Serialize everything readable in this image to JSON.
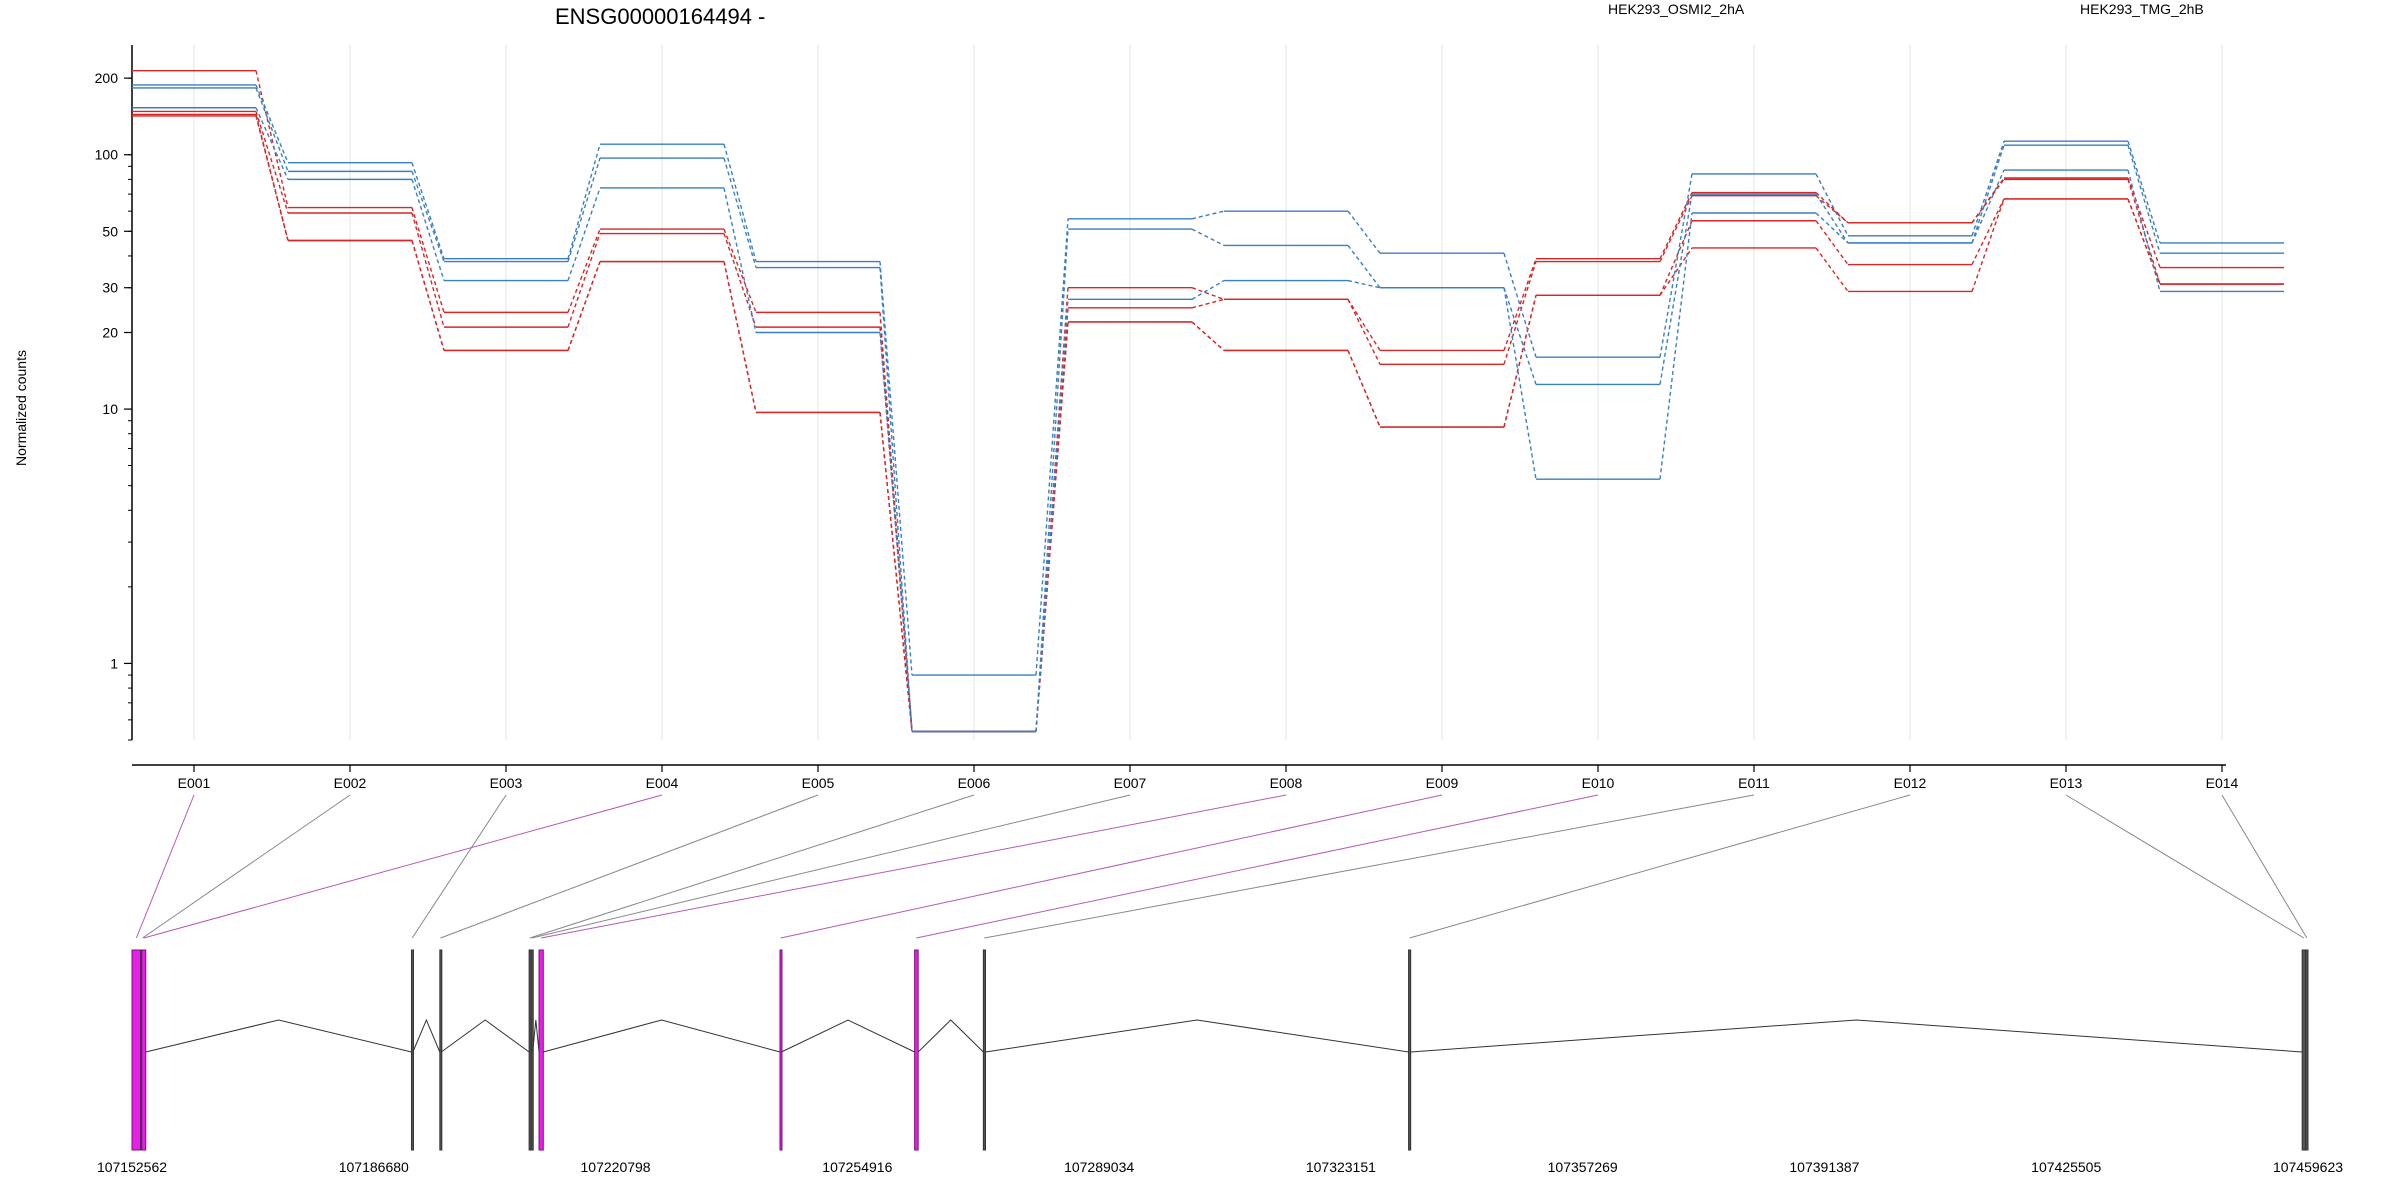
{
  "chart_data": {
    "type": "line",
    "title": "ENSG00000164494 -",
    "ylabel": "Normalized counts",
    "y_scale": "log",
    "ylim": [
      0.5,
      270
    ],
    "y_ticks": [
      1,
      10,
      20,
      30,
      50,
      100,
      200
    ],
    "grid": "vertical",
    "legend_placement": "top-right",
    "categories": [
      "E001",
      "E002",
      "E003",
      "E004",
      "E005",
      "E006",
      "E007",
      "E008",
      "E009",
      "E010",
      "E011",
      "E012",
      "E013",
      "E014"
    ],
    "series": [
      {
        "name": "HEK293_OSMI2_2hA",
        "color": "#d62728",
        "values": [
          214,
          62,
          24,
          51,
          24,
          0.54,
          30,
          27,
          17,
          39,
          71,
          54,
          81,
          36
        ]
      },
      {
        "name": "",
        "color": "#d62728",
        "values": [
          148,
          59,
          21,
          49,
          21,
          0.54,
          25,
          27,
          15,
          38,
          69,
          54,
          80,
          31
        ]
      },
      {
        "name": "",
        "color": "#d62728",
        "values": [
          142,
          46,
          17,
          38,
          9.7,
          0.54,
          22,
          17,
          8.5,
          28,
          55,
          37,
          67,
          31
        ]
      },
      {
        "name": "",
        "color": "#d62728",
        "values": [
          144,
          46,
          17,
          38,
          9.7,
          0.54,
          22,
          17,
          8.5,
          28,
          43,
          29,
          67,
          31
        ]
      },
      {
        "name": "HEK293_TMG_2hB",
        "color": "#3a7fc1",
        "values": [
          188,
          93,
          39,
          110,
          38,
          0.9,
          56,
          60,
          41,
          16,
          84,
          48,
          113,
          45
        ]
      },
      {
        "name": "",
        "color": "#3a7fc1",
        "values": [
          183,
          86,
          38,
          97,
          36,
          0.54,
          51,
          44,
          30,
          12.5,
          70,
          45,
          109,
          41
        ]
      },
      {
        "name": "",
        "color": "#3a7fc1",
        "values": [
          153,
          80,
          32,
          74,
          20,
          0.54,
          27,
          32,
          30,
          5.3,
          59,
          45,
          87,
          29
        ]
      }
    ],
    "gene_model": {
      "coordinate_ticks": [
        "107152562",
        "107186680",
        "107220798",
        "107254916",
        "107289034",
        "107323151",
        "107357269",
        "107391387",
        "107425505",
        "107459623"
      ],
      "exons": [
        {
          "exon": "E001",
          "start": 107152562,
          "end": 107153800,
          "highlighted": true
        },
        {
          "exon": "E002",
          "start": 107153800,
          "end": 107154300,
          "highlighted": false
        },
        {
          "exon": "E003",
          "start": 107192000,
          "end": 107192200,
          "highlighted": false
        },
        {
          "exon": "E004",
          "start": 107153950,
          "end": 107154500,
          "highlighted": true
        },
        {
          "exon": "E005",
          "start": 107196000,
          "end": 107196200,
          "highlighted": false
        },
        {
          "exon": "E006",
          "start": 107208600,
          "end": 107208800,
          "highlighted": false
        },
        {
          "exon": "E007",
          "start": 107208900,
          "end": 107209100,
          "highlighted": false
        },
        {
          "exon": "E008",
          "start": 107210000,
          "end": 107210600,
          "highlighted": true
        },
        {
          "exon": "E009",
          "start": 107244000,
          "end": 107244200,
          "highlighted": true
        },
        {
          "exon": "E010",
          "start": 107263000,
          "end": 107263500,
          "highlighted": true
        },
        {
          "exon": "E011",
          "start": 107272700,
          "end": 107273000,
          "highlighted": false
        },
        {
          "exon": "E012",
          "start": 107332700,
          "end": 107333000,
          "highlighted": false
        },
        {
          "exon": "E013",
          "start": 107458800,
          "end": 107459300,
          "highlighted": false
        },
        {
          "exon": "E014",
          "start": 107459300,
          "end": 107459623,
          "highlighted": false
        }
      ]
    }
  },
  "colors": {
    "osmi": "#d62728",
    "tmg": "#3a7fc1",
    "highlight_exon": "#e81fe8",
    "highlight_link": "#b55ab5",
    "normal_link": "#888888",
    "grid": "#e4e4e4"
  }
}
